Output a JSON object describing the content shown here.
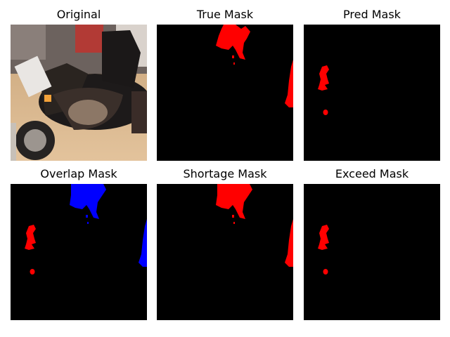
{
  "figure": {
    "panels": [
      {
        "title": "Original"
      },
      {
        "title": "True Mask"
      },
      {
        "title": "Pred Mask"
      },
      {
        "title": "Overlap Mask"
      },
      {
        "title": "Shortage Mask"
      },
      {
        "title": "Exceed Mask"
      }
    ],
    "colors": {
      "background": "#000000",
      "mask": "#ff0000",
      "overlap_true": "#0000ff",
      "overlap_pred": "#ff0000"
    }
  }
}
